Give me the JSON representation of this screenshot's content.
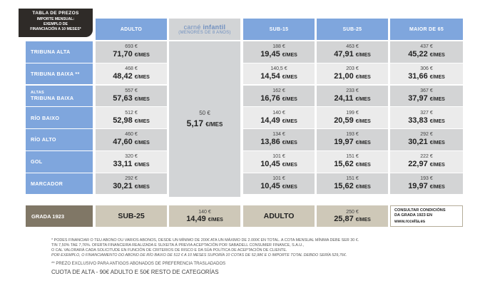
{
  "corner": {
    "title": "TABLA DE PREZOS",
    "subtitle_1": "IMPORTE MENSUAL:",
    "subtitle_2": "EXEMPLO DE",
    "subtitle_3": "FINANCIACIÓN A 10 MESES*"
  },
  "columns": {
    "adulto": "ADULTO",
    "infantil_main": "carné ",
    "infantil_bold": "infantil",
    "infantil_sub": "(MENORES DE 8 ANOS)",
    "sub15": "SUB-15",
    "sub25": "SUB-25",
    "maior65": "MAIOR DE 65"
  },
  "unit": "€/MES",
  "rows": [
    {
      "label": "TRIBUNA ALTA",
      "adulto": [
        "693 €",
        "71,70"
      ],
      "sub15": [
        "188 €",
        "19,45"
      ],
      "sub25": [
        "463 €",
        "47,91"
      ],
      "maior65": [
        "437 €",
        "45,22"
      ]
    },
    {
      "label": "TRIBUNA BAIXA **",
      "adulto": [
        "468 €",
        "48,42"
      ],
      "sub15": [
        "140,5 €",
        "14,54"
      ],
      "sub25": [
        "203 €",
        "21,00"
      ],
      "maior65": [
        "306 €",
        "31,66"
      ]
    },
    {
      "label_small": "ALTAS",
      "label": "TRIBUNA BAIXA",
      "adulto": [
        "557 €",
        "57,63"
      ],
      "sub15": [
        "162 €",
        "16,76"
      ],
      "sub25": [
        "233 €",
        "24,11"
      ],
      "maior65": [
        "367 €",
        "37,97"
      ]
    },
    {
      "label": "RÍO BAIXO",
      "adulto": [
        "512 €",
        "52,98"
      ],
      "sub15": [
        "140 €",
        "14,49"
      ],
      "sub25": [
        "199 €",
        "20,59"
      ],
      "maior65": [
        "327 €",
        "33,83"
      ]
    },
    {
      "label": "RÍO ALTO",
      "adulto": [
        "460 €",
        "47,60"
      ],
      "sub15": [
        "134 €",
        "13,86"
      ],
      "sub25": [
        "193 €",
        "19,97"
      ],
      "maior65": [
        "292 €",
        "30,21"
      ]
    },
    {
      "label": "GOL",
      "adulto": [
        "320 €",
        "33,11"
      ],
      "sub15": [
        "101 €",
        "10,45"
      ],
      "sub25": [
        "151 €",
        "15,62"
      ],
      "maior65": [
        "222 €",
        "22,97"
      ]
    },
    {
      "label": "MARCADOR",
      "adulto": [
        "292 €",
        "30,21"
      ],
      "sub15": [
        "101 €",
        "10,45"
      ],
      "sub25": [
        "151 €",
        "15,62"
      ],
      "maior65": [
        "193 €",
        "19,97"
      ]
    }
  ],
  "infantil": {
    "price": "50 €",
    "monthly": "5,17"
  },
  "grada": {
    "label": "GRADA 1923",
    "sub25_label": "SUB-25",
    "sub25_price": "140 €",
    "sub25_monthly": "14,49",
    "adulto_label": "ADULTO",
    "adulto_price": "250 €",
    "adulto_monthly": "25,87",
    "consult_1": "CONSULTAR CONDICIÓNS",
    "consult_2": "DA GRADA 1923 EN",
    "consult_url": "www.rcceltа.es"
  },
  "notes": {
    "n1a": "* PODES FINANCIAR O TEU ABONO OU VARIOS ABONOS, DESDE UN MÍNIMO DE 200€ ATA UN MÁXIMO DE 2.000€ EN TOTAL. A COTA MENSUAL MÍNIMA DEBE SER 30 €.",
    "n1b": "TIN 7,50% TAE 7,76%. OFERTA FINANCEIRA REALIZADA E SUXEITA Á PREVIA ACEPTACIÓN POR SABADELL CONSUMER FINANCE, S.A.U.,",
    "n1c": "O CAL VALORARÁ CADA SOLICITUDE EN FUNCIÓN DE CRITERIOS DE RISCO E DA SÚA POLÍTICA DE ACEPTACIÓN DE CLIENTE.",
    "n1d": "POR EXEMPLO, O FINANCIAMENTO DO ABONO DE RÍO BAIXO DE 512 € A 10 MESES SUPORÍA 10 COTAS DE 52,98€ E O IMPORTE TOTAL DEBIDO SERÍA 529,76€.",
    "n2": "** PREZO EXCLUSIVO PARA ANTIGOS ABONADOS DE PREFERENCIA TRASLADADOS",
    "n3": "CUOTA DE ALTA - 90€ ADULTO E 50€ RESTO DE CATEGORÍAS"
  }
}
